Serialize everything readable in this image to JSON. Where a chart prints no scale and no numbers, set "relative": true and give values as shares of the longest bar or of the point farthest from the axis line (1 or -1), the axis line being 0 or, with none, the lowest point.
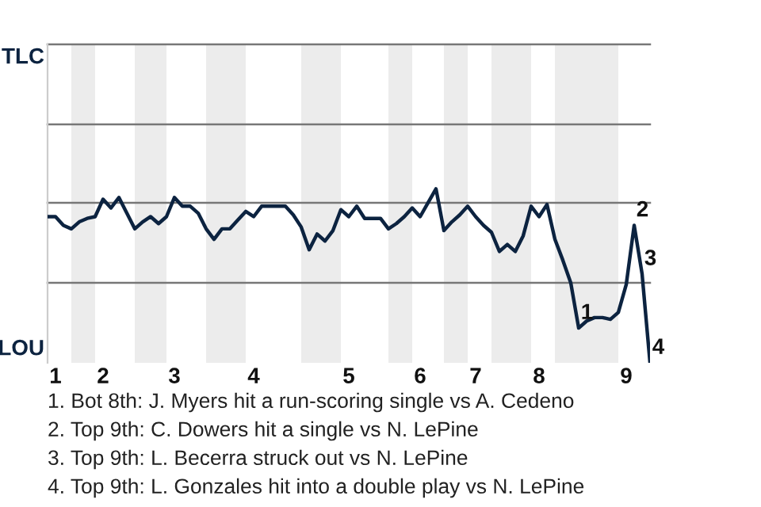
{
  "chart_data": {
    "type": "line",
    "relative": true,
    "categories": [
      null,
      "1",
      null,
      null,
      null,
      null,
      null,
      "2",
      null,
      null,
      null,
      null,
      null,
      null,
      null,
      null,
      "3",
      null,
      null,
      null,
      null,
      null,
      null,
      null,
      null,
      null,
      "4",
      null,
      null,
      null,
      null,
      null,
      null,
      null,
      null,
      null,
      null,
      null,
      "5",
      null,
      null,
      null,
      null,
      null,
      null,
      null,
      null,
      "6",
      null,
      null,
      null,
      null,
      null,
      null,
      "7",
      null,
      null,
      null,
      null,
      null,
      null,
      null,
      "8",
      null,
      null,
      null,
      null,
      null,
      null,
      null,
      null,
      null,
      null,
      "9",
      null,
      null,
      null
    ],
    "series": [
      {
        "color": "#0c2340",
        "values": [
          0.84,
          0.84,
          0.79,
          0.77,
          0.81,
          0.83,
          0.84,
          0.94,
          0.89,
          0.95,
          0.86,
          0.77,
          0.81,
          0.84,
          0.8,
          0.84,
          0.95,
          0.9,
          0.9,
          0.86,
          0.77,
          0.71,
          0.77,
          0.77,
          0.82,
          0.87,
          0.84,
          0.9,
          0.9,
          0.9,
          0.9,
          0.85,
          0.78,
          0.65,
          0.74,
          0.7,
          0.76,
          0.88,
          0.84,
          0.9,
          0.83,
          0.83,
          0.83,
          0.77,
          0.8,
          0.84,
          0.89,
          0.84,
          0.92,
          1,
          0.76,
          0.81,
          0.85,
          0.9,
          0.84,
          0.79,
          0.75,
          0.64,
          0.68,
          0.64,
          0.73,
          0.9,
          0.84,
          0.91,
          0.71,
          0.59,
          0.46,
          0.2,
          0.24,
          0.26,
          0.26,
          0.25,
          0.29,
          0.45,
          0.79,
          0.51,
          0
        ]
      }
    ],
    "marker": "none",
    "line_style": "solid",
    "ref_lines": [
      {
        "axis": "y",
        "value": 0.46,
        "color": "#777777"
      },
      {
        "axis": "y",
        "value": 0.92,
        "color": "#777777"
      },
      {
        "axis": "y",
        "value": 1.37,
        "color": "#777777"
      },
      {
        "axis": "y",
        "value": 1.83,
        "color": "#777777"
      }
    ],
    "annotations": [
      "TLC",
      "LOU",
      {
        "text": "1",
        "y": 0.2
      },
      {
        "text": "2",
        "y": 0.79
      },
      {
        "text": "3",
        "y": 0.51
      },
      "4",
      "1. Bot 8th: J. Myers hit a run-scoring single vs A. Cedeno",
      "2. Top 9th: C. Dowers hit a single vs N. LePine",
      "3. Top 9th: L. Becerra struck out vs N. LePine",
      "4. Top 9th: L. Gonzales hit into a double play vs N. LePine"
    ]
  }
}
